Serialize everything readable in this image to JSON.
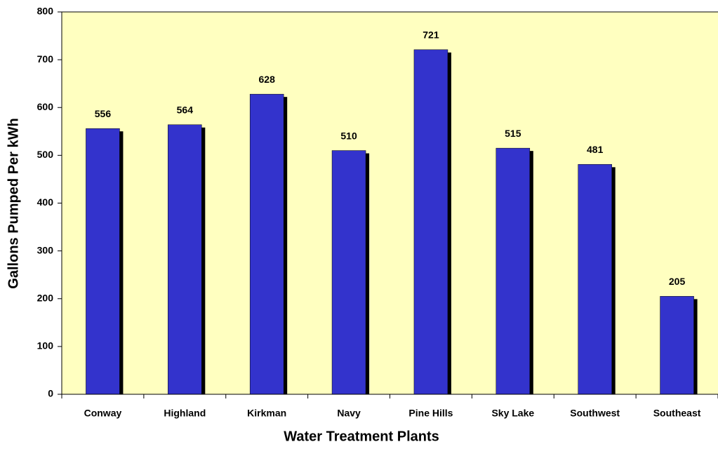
{
  "chart_data": {
    "type": "bar",
    "xlabel": "Water Treatment Plants",
    "ylabel": "Gallons Pumped Per kWh",
    "categories": [
      "Conway",
      "Highland",
      "Kirkman",
      "Navy",
      "Pine Hills",
      "Sky Lake",
      "Southwest",
      "Southeast"
    ],
    "values": [
      556,
      564,
      628,
      510,
      721,
      515,
      481,
      205
    ],
    "color": "#3333cc",
    "ylim": [
      0,
      800
    ],
    "yticks": [
      0,
      100,
      200,
      300,
      400,
      500,
      600,
      700,
      800
    ],
    "grid": false
  }
}
